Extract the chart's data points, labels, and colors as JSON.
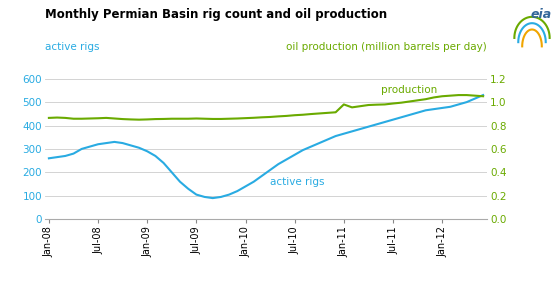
{
  "title": "Monthly Permian Basin rig count and oil production",
  "left_axis_label": "active rigs",
  "right_axis_label": "oil production (million barrels per day)",
  "left_color": "#29abe2",
  "right_color": "#6aaa00",
  "title_color": "#000000",
  "bg_color": "#ffffff",
  "grid_color": "#cccccc",
  "ylim_left": [
    0,
    600
  ],
  "ylim_right": [
    0.0,
    1.2
  ],
  "left_yticks": [
    0,
    100,
    200,
    300,
    400,
    500,
    600
  ],
  "right_yticks": [
    0.0,
    0.2,
    0.4,
    0.6,
    0.8,
    1.0,
    1.2
  ],
  "xtick_labels": [
    "Jan-08",
    "Jul-08",
    "Jan-09",
    "Jul-09",
    "Jan-10",
    "Jul-10",
    "Jan-11",
    "Jul-11",
    "Jan-12"
  ],
  "xtick_positions": [
    0,
    6,
    12,
    18,
    24,
    30,
    36,
    42,
    48
  ],
  "label_active_rigs": "active rigs",
  "label_production": "production",
  "eia_text": "eia",
  "months_from_jan08": [
    0,
    1,
    2,
    3,
    4,
    5,
    6,
    7,
    8,
    9,
    10,
    11,
    12,
    13,
    14,
    15,
    16,
    17,
    18,
    19,
    20,
    21,
    22,
    23,
    24,
    25,
    26,
    27,
    28,
    29,
    30,
    31,
    32,
    33,
    34,
    35,
    36,
    37,
    38,
    39,
    40,
    41,
    42,
    43,
    44,
    45,
    46,
    47,
    48,
    49,
    50,
    51,
    52,
    53
  ],
  "rig_counts": [
    260,
    265,
    270,
    280,
    300,
    310,
    320,
    325,
    330,
    325,
    315,
    305,
    290,
    270,
    240,
    200,
    160,
    130,
    105,
    95,
    90,
    95,
    105,
    120,
    140,
    160,
    185,
    210,
    235,
    255,
    275,
    295,
    310,
    325,
    340,
    355,
    365,
    375,
    385,
    395,
    405,
    415,
    425,
    435,
    445,
    455,
    465,
    470,
    475,
    480,
    490,
    500,
    515,
    530
  ],
  "production": [
    0.865,
    0.868,
    0.865,
    0.858,
    0.858,
    0.86,
    0.862,
    0.865,
    0.86,
    0.855,
    0.852,
    0.85,
    0.852,
    0.855,
    0.856,
    0.858,
    0.858,
    0.858,
    0.86,
    0.858,
    0.856,
    0.856,
    0.858,
    0.86,
    0.863,
    0.866,
    0.87,
    0.873,
    0.878,
    0.882,
    0.888,
    0.892,
    0.898,
    0.903,
    0.908,
    0.913,
    0.98,
    0.955,
    0.965,
    0.975,
    0.978,
    0.98,
    0.988,
    0.995,
    1.005,
    1.015,
    1.025,
    1.04,
    1.05,
    1.055,
    1.06,
    1.06,
    1.055,
    1.05
  ]
}
